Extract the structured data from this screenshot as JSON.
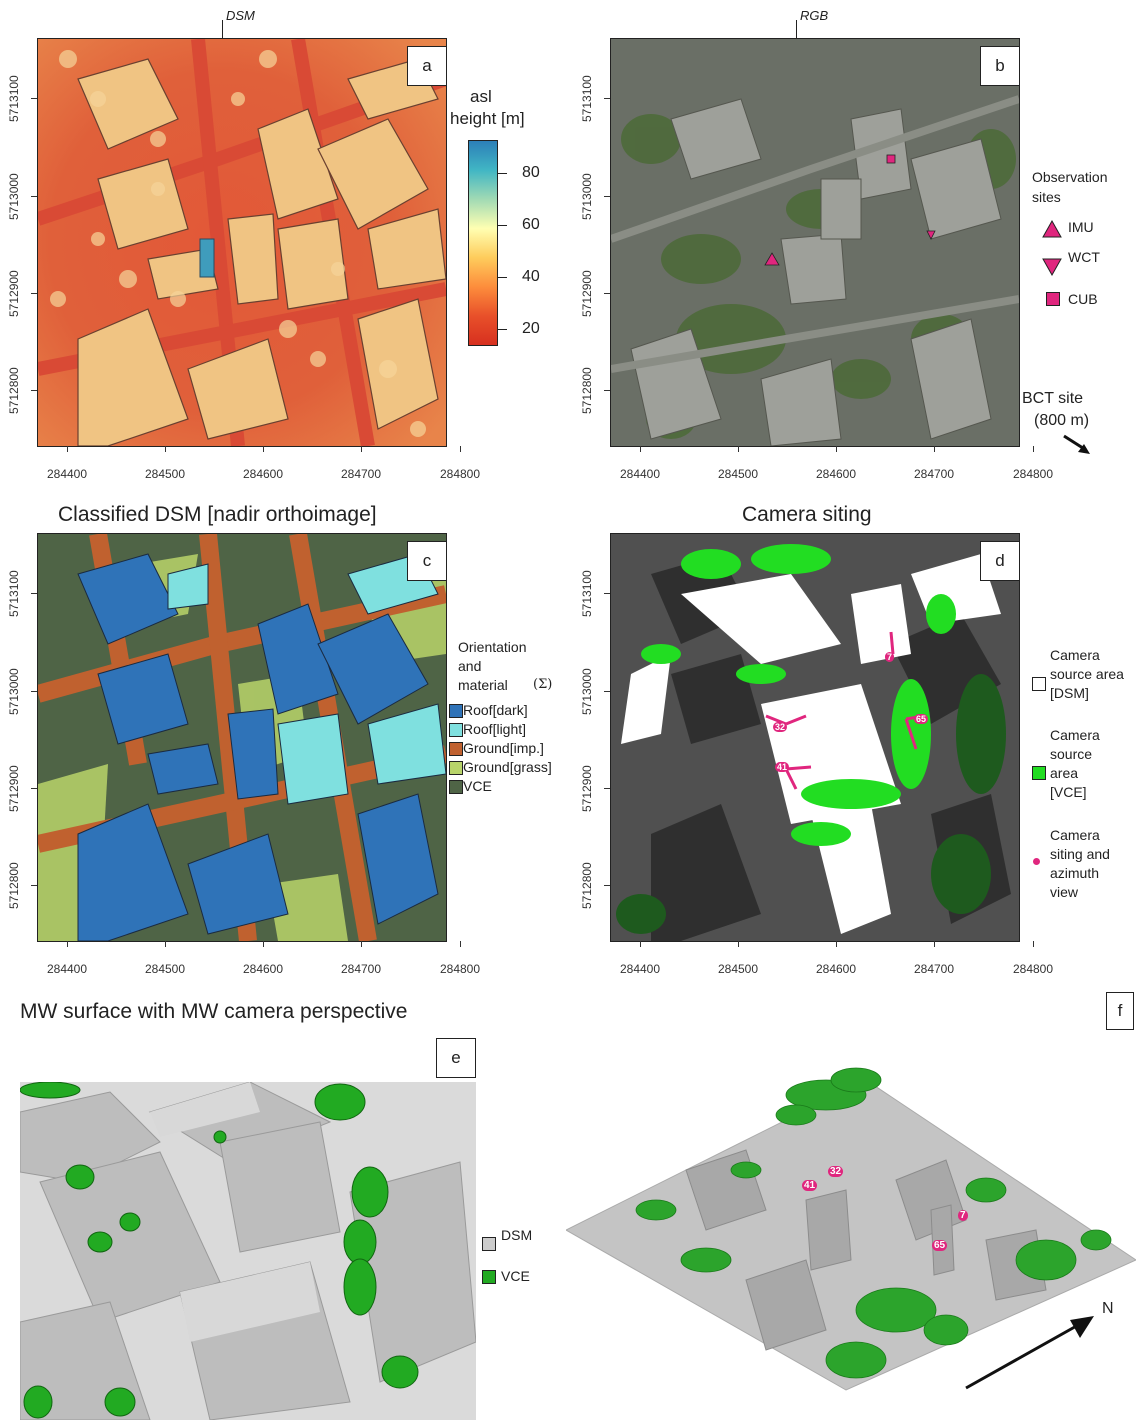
{
  "panels": {
    "a": {
      "letter": "a",
      "corner_label": "DSM"
    },
    "b": {
      "letter": "b",
      "corner_label": "RGB"
    },
    "c": {
      "letter": "c",
      "title": "Classified DSM [nadir orthoimage]"
    },
    "d": {
      "letter": "d",
      "title": "Camera siting"
    },
    "e": {
      "letter": "e",
      "title": "MW surface with MW camera perspective"
    },
    "f": {
      "letter": "f"
    }
  },
  "axes": {
    "x_ticks": [
      "284400",
      "284500",
      "284600",
      "284700",
      "284800"
    ],
    "y_ticks": [
      "5713100",
      "5713000",
      "5712900",
      "5712800"
    ]
  },
  "colorbar": {
    "title_line1": "asl",
    "title_line2": "height [m]",
    "ticks": [
      "80",
      "60",
      "40",
      "20"
    ],
    "colors": [
      "#2c7fb8",
      "#41b6c4",
      "#a1dab4",
      "#ffffb2",
      "#fecc5c",
      "#fd8d3c",
      "#e8502a",
      "#d7301f"
    ]
  },
  "legend_b": {
    "title_line1": "Observation",
    "title_line2": "sites",
    "items": [
      {
        "label": "IMU"
      },
      {
        "label": "WCT"
      },
      {
        "label": "CUB"
      }
    ],
    "bct_line1": "BCT site",
    "bct_line2": "(800 m)",
    "marker_color": "#e0267e"
  },
  "legend_c": {
    "title_line1": "Orientation",
    "title_line2": "and",
    "title_line3": "material",
    "title_sigma": "(Σ)",
    "items": [
      {
        "label": "Roof[dark]",
        "color": "#2f73b8"
      },
      {
        "label": "Roof[light]",
        "color": "#7fe0df"
      },
      {
        "label": "Ground[imp.]",
        "color": "#c0612f"
      },
      {
        "label": "Ground[grass]",
        "color": "#b8d46a"
      },
      {
        "label": "VCE",
        "color": "#4f6446"
      }
    ]
  },
  "legend_d": {
    "item1_lines": [
      "Camera",
      "source area",
      "[DSM]"
    ],
    "item2_lines": [
      "Camera",
      "source",
      "area",
      "[VCE]"
    ],
    "item3_lines": [
      "Camera",
      "siting and",
      "azimuth",
      "view"
    ],
    "vce_color": "#22dd22",
    "camera_color": "#e0267e"
  },
  "legend_e": {
    "items": [
      {
        "label": "DSM",
        "color": "#cccccc"
      },
      {
        "label": "VCE",
        "color": "#22aa22"
      }
    ]
  },
  "camera_labels": {
    "d": [
      "32",
      "41",
      "7",
      "65"
    ],
    "f": [
      "32",
      "41",
      "7",
      "65"
    ]
  },
  "north_label": "N"
}
